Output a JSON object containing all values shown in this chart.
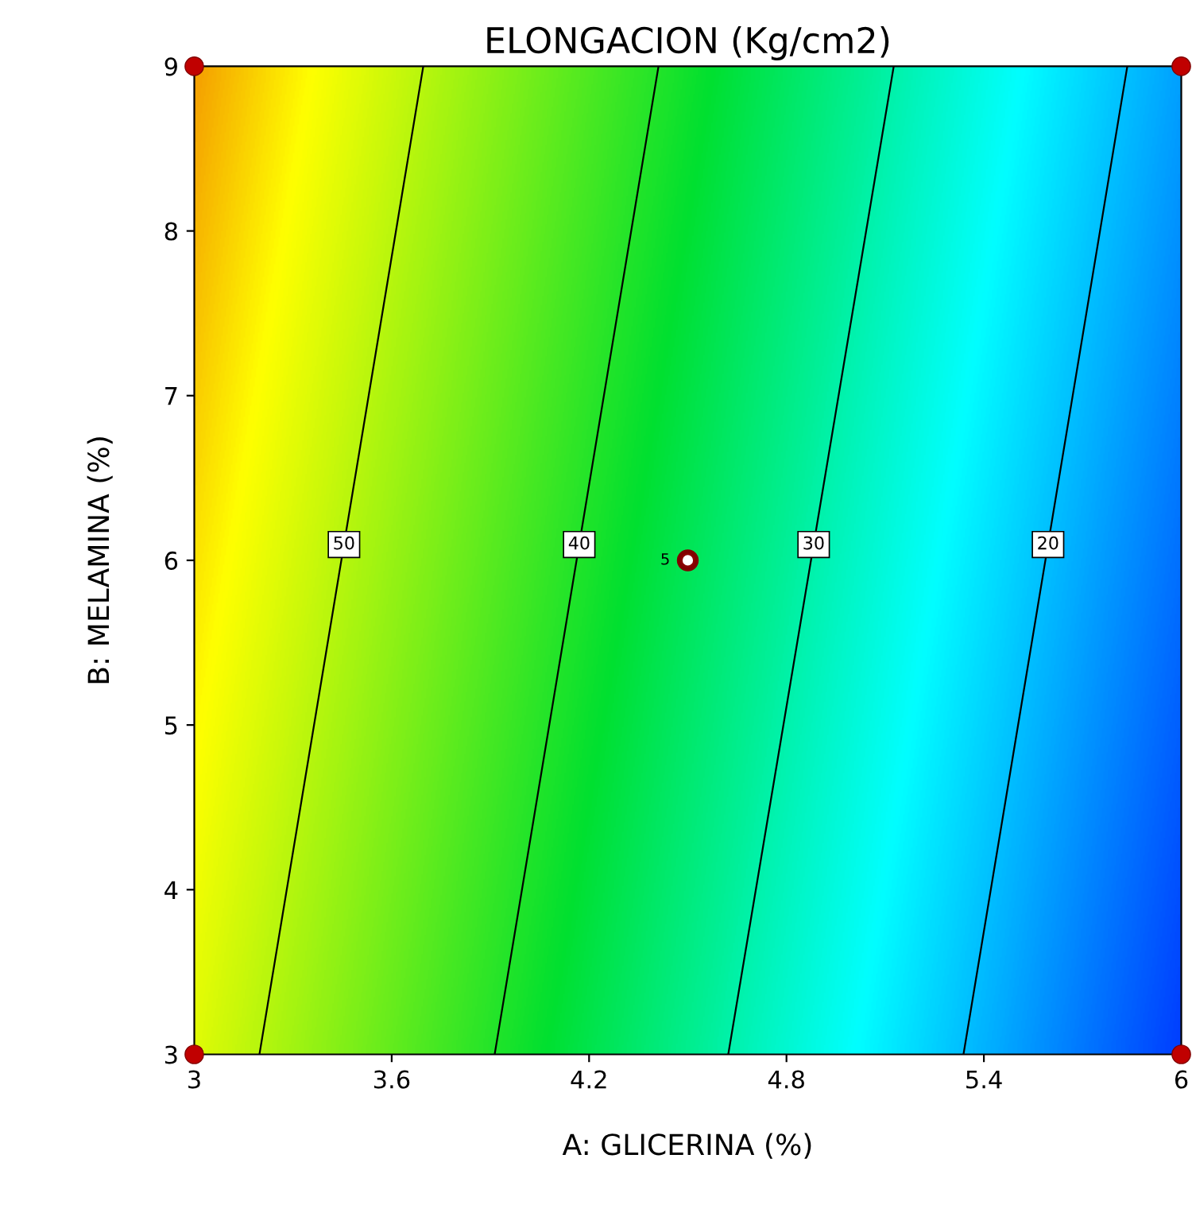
{
  "chart_data": {
    "type": "line",
    "title": "ELONGACION (Kg/cm2)",
    "xlabel": "A: GLICERINA (%)",
    "ylabel": "B: MELAMINA (%)",
    "xlim": [
      3,
      6
    ],
    "ylim": [
      3,
      9
    ],
    "xticks": [
      3,
      3.6,
      4.2,
      4.8,
      5.4,
      6
    ],
    "yticks": [
      3,
      4,
      5,
      6,
      7,
      8,
      9
    ],
    "grid": false,
    "legend": false,
    "series": [
      {
        "name": "50",
        "color": "#000000",
        "x": [
          3.198,
          3.696
        ],
        "values": [
          3,
          9
        ],
        "marker": "none",
        "line_style": "solid"
      },
      {
        "name": "40",
        "color": "#000000",
        "x": [
          3.913,
          4.411
        ],
        "values": [
          3,
          9
        ],
        "marker": "none",
        "line_style": "solid"
      },
      {
        "name": "30",
        "color": "#000000",
        "x": [
          4.623,
          5.126
        ],
        "values": [
          3,
          9
        ],
        "marker": "none",
        "line_style": "solid"
      },
      {
        "name": "20",
        "color": "#000000",
        "x": [
          5.338,
          5.836
        ],
        "values": [
          3,
          9
        ],
        "marker": "none",
        "line_style": "solid"
      },
      {
        "type": "scatter",
        "color": "#c00000",
        "x": [
          3,
          3,
          6,
          6
        ],
        "values": [
          3,
          9,
          3,
          9
        ],
        "marker": "circle"
      },
      {
        "type": "scatter",
        "color": "#8b0000",
        "x": [
          4.5
        ],
        "values": [
          6
        ],
        "marker": "circle"
      }
    ],
    "annotations": [
      {
        "text": "5",
        "x": 4.5,
        "y": 6
      }
    ]
  }
}
